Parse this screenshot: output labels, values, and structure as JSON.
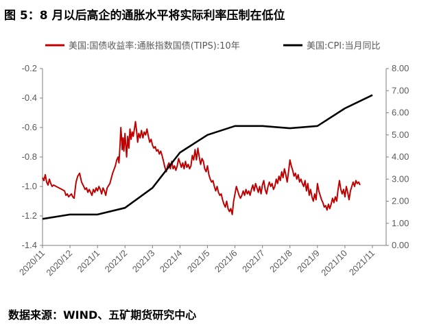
{
  "title": "图 5：8 月以后高企的通胀水平将实际利率压制在低位",
  "source": "数据来源：WIND、五矿期货研究中心",
  "watermark": "",
  "colors": {
    "series1": "#c00000",
    "series2": "#000000",
    "axis": "#7f7f7f"
  },
  "chart_data": {
    "type": "line",
    "x_ticks": [
      "2020/11",
      "2020/12",
      "2021/1",
      "2021/2",
      "2021/3",
      "2021/4",
      "2021/5",
      "2021/6",
      "2021/7",
      "2021/8",
      "2021/9",
      "2021/10",
      "2021/11"
    ],
    "left_axis": {
      "ylim": [
        -1.4,
        -0.2
      ],
      "ticks": [
        "-0.2",
        "-0.4",
        "-0.6",
        "-0.8",
        "-1.0",
        "-1.2",
        "-1.4"
      ]
    },
    "right_axis": {
      "ylim": [
        0,
        8
      ],
      "ticks": [
        "8.00",
        "7.00",
        "6.00",
        "5.00",
        "4.00",
        "3.00",
        "2.00",
        "1.00",
        "0.00"
      ]
    },
    "legend": "top",
    "series": [
      {
        "name": "美国:国债收益率:通胀指数国债(TIPS):10年",
        "axis": "left",
        "points": [
          [
            0.0,
            -0.94
          ],
          [
            0.05,
            -0.96
          ],
          [
            0.1,
            -0.92
          ],
          [
            0.15,
            -0.97
          ],
          [
            0.2,
            -0.99
          ],
          [
            0.25,
            -0.95
          ],
          [
            0.3,
            -0.98
          ],
          [
            0.35,
            -1.0
          ],
          [
            0.4,
            -0.99
          ],
          [
            0.5,
            -1.0
          ],
          [
            0.6,
            -1.01
          ],
          [
            0.7,
            -1.02
          ],
          [
            0.8,
            -1.03
          ],
          [
            0.85,
            -1.06
          ],
          [
            0.9,
            -1.05
          ],
          [
            0.95,
            -1.07
          ],
          [
            1.0,
            -1.06
          ],
          [
            1.05,
            -1.05
          ],
          [
            1.1,
            -1.07
          ],
          [
            1.15,
            -1.08
          ],
          [
            1.18,
            -1.03
          ],
          [
            1.22,
            -0.97
          ],
          [
            1.28,
            -0.93
          ],
          [
            1.35,
            -0.91
          ],
          [
            1.42,
            -0.97
          ],
          [
            1.5,
            -1.0
          ],
          [
            1.55,
            -1.02
          ],
          [
            1.6,
            -1.01
          ],
          [
            1.65,
            -1.04
          ],
          [
            1.7,
            -1.02
          ],
          [
            1.75,
            -1.04
          ],
          [
            1.8,
            -1.06
          ],
          [
            1.85,
            -1.02
          ],
          [
            1.9,
            -1.04
          ],
          [
            1.95,
            -1.01
          ],
          [
            2.0,
            -1.03
          ],
          [
            2.05,
            -1.0
          ],
          [
            2.1,
            -1.02
          ],
          [
            2.15,
            -1.05
          ],
          [
            2.2,
            -1.01
          ],
          [
            2.25,
            -1.03
          ],
          [
            2.3,
            -1.06
          ],
          [
            2.35,
            -1.01
          ],
          [
            2.45,
            -0.98
          ],
          [
            2.55,
            -0.91
          ],
          [
            2.65,
            -0.86
          ],
          [
            2.7,
            -0.82
          ],
          [
            2.75,
            -0.8
          ],
          [
            2.78,
            -0.84
          ],
          [
            2.82,
            -0.72
          ],
          [
            2.85,
            -0.6
          ],
          [
            2.88,
            -0.68
          ],
          [
            2.9,
            -0.75
          ],
          [
            2.93,
            -0.67
          ],
          [
            2.96,
            -0.76
          ],
          [
            3.0,
            -0.64
          ],
          [
            3.03,
            -0.72
          ],
          [
            3.06,
            -0.8
          ],
          [
            3.1,
            -0.66
          ],
          [
            3.14,
            -0.74
          ],
          [
            3.18,
            -0.61
          ],
          [
            3.22,
            -0.68
          ],
          [
            3.26,
            -0.63
          ],
          [
            3.3,
            -0.66
          ],
          [
            3.35,
            -0.6
          ],
          [
            3.38,
            -0.56
          ],
          [
            3.42,
            -0.62
          ],
          [
            3.46,
            -0.7
          ],
          [
            3.5,
            -0.64
          ],
          [
            3.55,
            -0.67
          ],
          [
            3.6,
            -0.62
          ],
          [
            3.65,
            -0.67
          ],
          [
            3.7,
            -0.63
          ],
          [
            3.75,
            -0.65
          ],
          [
            3.8,
            -0.61
          ],
          [
            3.85,
            -0.66
          ],
          [
            3.9,
            -0.7
          ],
          [
            3.95,
            -0.68
          ],
          [
            4.0,
            -0.72
          ],
          [
            4.05,
            -0.74
          ],
          [
            4.1,
            -0.73
          ],
          [
            4.15,
            -0.76
          ],
          [
            4.2,
            -0.75
          ],
          [
            4.25,
            -0.78
          ],
          [
            4.3,
            -0.76
          ],
          [
            4.35,
            -0.79
          ],
          [
            4.4,
            -0.83
          ],
          [
            4.45,
            -0.87
          ],
          [
            4.5,
            -0.9
          ],
          [
            4.55,
            -0.86
          ],
          [
            4.6,
            -0.84
          ],
          [
            4.65,
            -0.88
          ],
          [
            4.7,
            -0.83
          ],
          [
            4.75,
            -0.88
          ],
          [
            4.8,
            -0.86
          ],
          [
            4.85,
            -0.89
          ],
          [
            4.9,
            -0.86
          ],
          [
            4.95,
            -0.81
          ],
          [
            5.0,
            -0.84
          ],
          [
            5.05,
            -0.87
          ],
          [
            5.1,
            -0.84
          ],
          [
            5.15,
            -0.88
          ],
          [
            5.2,
            -0.83
          ],
          [
            5.25,
            -0.87
          ],
          [
            5.3,
            -0.85
          ],
          [
            5.35,
            -0.88
          ],
          [
            5.4,
            -0.86
          ],
          [
            5.45,
            -0.79
          ],
          [
            5.5,
            -0.82
          ],
          [
            5.55,
            -0.75
          ],
          [
            5.6,
            -0.82
          ],
          [
            5.65,
            -0.74
          ],
          [
            5.7,
            -0.8
          ],
          [
            5.75,
            -0.85
          ],
          [
            5.8,
            -0.81
          ],
          [
            5.85,
            -0.83
          ],
          [
            5.9,
            -0.88
          ],
          [
            5.95,
            -0.9
          ],
          [
            6.0,
            -0.86
          ],
          [
            6.05,
            -0.92
          ],
          [
            6.1,
            -0.95
          ],
          [
            6.15,
            -0.97
          ],
          [
            6.2,
            -0.96
          ],
          [
            6.25,
            -1.0
          ],
          [
            6.3,
            -1.03
          ],
          [
            6.35,
            -1.0
          ],
          [
            6.4,
            -1.04
          ],
          [
            6.45,
            -1.06
          ],
          [
            6.5,
            -1.05
          ],
          [
            6.55,
            -1.09
          ],
          [
            6.6,
            -1.12
          ],
          [
            6.65,
            -1.14
          ],
          [
            6.7,
            -1.1
          ],
          [
            6.75,
            -1.15
          ],
          [
            6.8,
            -1.17
          ],
          [
            6.85,
            -1.15
          ],
          [
            6.9,
            -1.19
          ],
          [
            6.95,
            -1.1
          ],
          [
            7.0,
            -1.05
          ],
          [
            7.05,
            -1.0
          ],
          [
            7.1,
            -1.03
          ],
          [
            7.15,
            -1.06
          ],
          [
            7.2,
            -1.08
          ],
          [
            7.25,
            -1.06
          ],
          [
            7.3,
            -1.03
          ],
          [
            7.35,
            -1.06
          ],
          [
            7.4,
            -1.02
          ],
          [
            7.45,
            -1.05
          ],
          [
            7.5,
            -1.03
          ],
          [
            7.55,
            -1.06
          ],
          [
            7.6,
            -1.02
          ],
          [
            7.65,
            -0.99
          ],
          [
            7.7,
            -1.03
          ],
          [
            7.75,
            -0.98
          ],
          [
            7.8,
            -1.01
          ],
          [
            7.85,
            -1.04
          ],
          [
            7.9,
            -1.0
          ],
          [
            7.95,
            -1.05
          ],
          [
            8.0,
            -0.99
          ],
          [
            8.05,
            -0.96
          ],
          [
            8.1,
            -1.02
          ],
          [
            8.15,
            -1.05
          ],
          [
            8.2,
            -1.0
          ],
          [
            8.25,
            -0.97
          ],
          [
            8.3,
            -1.0
          ],
          [
            8.35,
            -0.98
          ],
          [
            8.4,
            -1.02
          ],
          [
            8.45,
            -1.0
          ],
          [
            8.5,
            -0.95
          ],
          [
            8.55,
            -0.98
          ],
          [
            8.6,
            -0.93
          ],
          [
            8.65,
            -0.96
          ],
          [
            8.7,
            -0.9
          ],
          [
            8.75,
            -0.94
          ],
          [
            8.8,
            -0.88
          ],
          [
            8.85,
            -0.92
          ],
          [
            8.9,
            -0.97
          ],
          [
            8.95,
            -0.9
          ],
          [
            9.0,
            -0.82
          ],
          [
            9.05,
            -0.86
          ],
          [
            9.1,
            -0.89
          ],
          [
            9.15,
            -0.93
          ],
          [
            9.2,
            -0.91
          ],
          [
            9.25,
            -0.95
          ],
          [
            9.3,
            -0.92
          ],
          [
            9.35,
            -0.97
          ],
          [
            9.4,
            -0.95
          ],
          [
            9.45,
            -0.98
          ],
          [
            9.5,
            -1.0
          ],
          [
            9.55,
            -0.96
          ],
          [
            9.6,
            -1.03
          ],
          [
            9.65,
            -0.98
          ],
          [
            9.7,
            -1.06
          ],
          [
            9.75,
            -1.02
          ],
          [
            9.8,
            -1.07
          ],
          [
            9.85,
            -1.1
          ],
          [
            9.9,
            -1.05
          ],
          [
            9.95,
            -1.09
          ],
          [
            10.0,
            -0.98
          ],
          [
            10.05,
            -1.03
          ],
          [
            10.1,
            -1.06
          ],
          [
            10.15,
            -1.09
          ],
          [
            10.2,
            -1.11
          ],
          [
            10.25,
            -1.14
          ],
          [
            10.3,
            -1.13
          ],
          [
            10.35,
            -1.16
          ],
          [
            10.4,
            -1.12
          ],
          [
            10.45,
            -1.15
          ],
          [
            10.5,
            -1.12
          ],
          [
            10.55,
            -1.08
          ],
          [
            10.6,
            -1.11
          ],
          [
            10.65,
            -1.07
          ],
          [
            10.7,
            -1.1
          ],
          [
            10.75,
            -1.02
          ],
          [
            10.8,
            -0.96
          ],
          [
            10.85,
            -1.02
          ],
          [
            10.9,
            -1.05
          ],
          [
            10.95,
            -1.02
          ],
          [
            11.0,
            -1.07
          ],
          [
            11.05,
            -1.0
          ],
          [
            11.1,
            -1.04
          ],
          [
            11.15,
            -1.09
          ],
          [
            11.2,
            -1.03
          ],
          [
            11.25,
            -1.0
          ],
          [
            11.3,
            -0.97
          ],
          [
            11.35,
            -1.0
          ],
          [
            11.4,
            -0.96
          ],
          [
            11.45,
            -0.98
          ],
          [
            11.5,
            -0.97
          ],
          [
            11.55,
            -0.99
          ]
        ]
      },
      {
        "name": "美国:CPI:当月同比",
        "axis": "right",
        "points": [
          [
            0,
            1.2
          ],
          [
            1,
            1.4
          ],
          [
            2,
            1.4
          ],
          [
            3,
            1.7
          ],
          [
            4,
            2.6
          ],
          [
            5,
            4.2
          ],
          [
            6,
            5.0
          ],
          [
            7,
            5.4
          ],
          [
            8,
            5.4
          ],
          [
            9,
            5.3
          ],
          [
            10,
            5.4
          ],
          [
            11,
            6.2
          ],
          [
            12,
            6.8
          ]
        ]
      }
    ]
  }
}
